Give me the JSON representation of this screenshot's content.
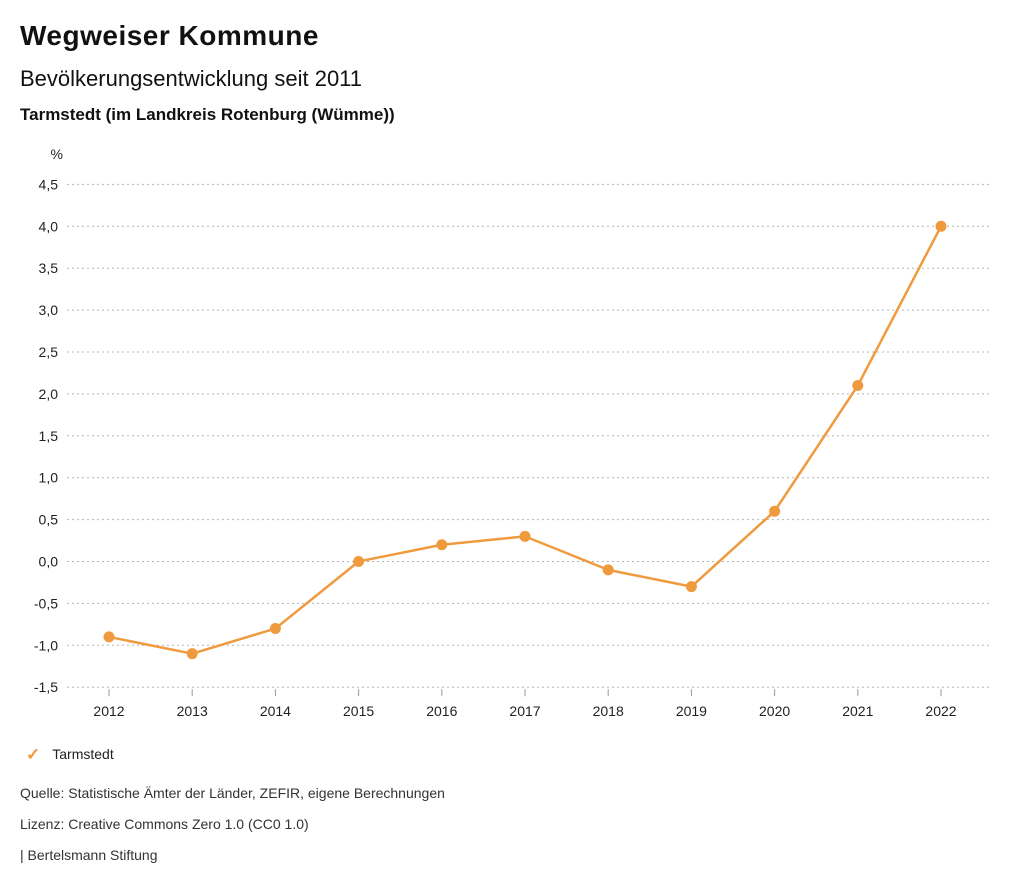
{
  "header": {
    "title": "Wegweiser Kommune",
    "subtitle": "Bevölkerungsentwicklung seit 2011",
    "region": "Tarmstedt (im Landkreis Rotenburg (Wümme))"
  },
  "chart_data": {
    "type": "line",
    "title": "Bevölkerungsentwicklung seit 2011",
    "region": "Tarmstedt (im Landkreis Rotenburg (Wümme))",
    "unit_label": "%",
    "x": [
      2012,
      2013,
      2014,
      2015,
      2016,
      2017,
      2018,
      2019,
      2020,
      2021,
      2022
    ],
    "series": [
      {
        "name": "Tarmstedt",
        "values": [
          -0.9,
          -1.1,
          -0.8,
          0.0,
          0.2,
          0.3,
          -0.1,
          -0.3,
          0.6,
          2.1,
          4.0
        ],
        "color": "#F09A3E"
      }
    ],
    "ylim": [
      -1.5,
      4.5
    ],
    "ytick_step": 0.5,
    "decimal_separator": ",",
    "grid": "horizontal-dotted",
    "grid_color": "#b5b5b5",
    "tick_color": "#999999",
    "axis_text_color": "#222222",
    "legend_position": "bottom-left"
  },
  "legend": {
    "items": [
      {
        "label": "Tarmstedt",
        "color": "#F09A3E",
        "icon": "check"
      }
    ]
  },
  "footer": {
    "source": "Quelle: Statistische Ämter der Länder, ZEFIR, eigene Berechnungen",
    "license": "Lizenz: Creative Commons Zero 1.0 (CC0 1.0)",
    "attribution": "| Bertelsmann Stiftung"
  }
}
